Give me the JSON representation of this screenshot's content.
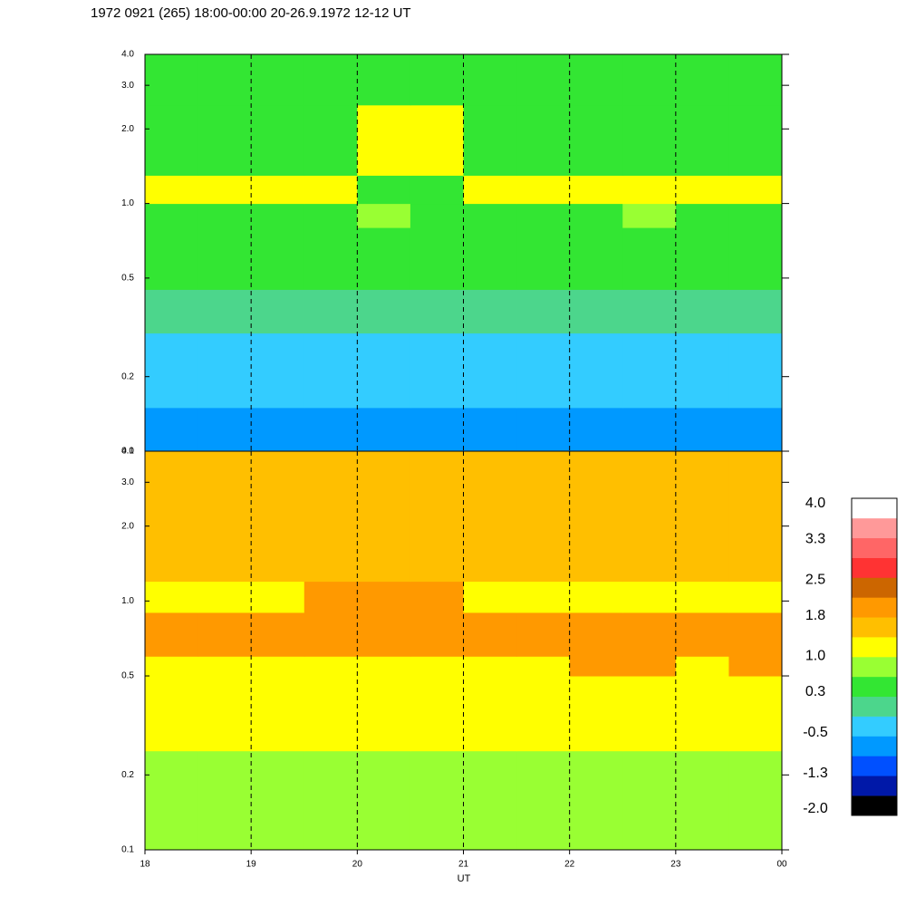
{
  "chart_data": [
    {
      "type": "heatmap",
      "title": "1972 0921 (265) 18:00-00:00 20-26.9.1972  12-12 UT",
      "x_edges": [
        18,
        18.5,
        19,
        19.5,
        20,
        20.5,
        21,
        21.5,
        22,
        22.5,
        23,
        23.5,
        24
      ],
      "y_edges": [
        0.1,
        0.15,
        0.3,
        0.45,
        0.8,
        1.0,
        1.3,
        2.5,
        4.0
      ],
      "z": [
        [
          -0.8,
          -0.8,
          -0.8,
          -0.8,
          -0.8,
          -0.8,
          -0.8,
          -0.8,
          -0.8,
          -0.8,
          -0.8,
          -0.8
        ],
        [
          -0.5,
          -0.5,
          -0.5,
          -0.5,
          -0.5,
          -0.5,
          -0.5,
          -0.5,
          -0.5,
          -0.5,
          -0.5,
          -0.5
        ],
        [
          0,
          0,
          0,
          0,
          0,
          0,
          0,
          0,
          0,
          0,
          0,
          0
        ],
        [
          0.5,
          0.5,
          0.5,
          0.5,
          0.5,
          0.5,
          0.5,
          0.5,
          0.5,
          0.5,
          0.5,
          0.5
        ],
        [
          0.5,
          0.5,
          0.6,
          0.6,
          0.8,
          0.6,
          0.6,
          0.5,
          0.5,
          0.8,
          0.5,
          0.5
        ],
        [
          1.2,
          1.2,
          1.2,
          1.2,
          0.6,
          0.6,
          1.2,
          1.2,
          1.2,
          1.2,
          1.2,
          1.2
        ],
        [
          0.4,
          0.4,
          0.4,
          0.4,
          1.2,
          1.2,
          0.4,
          0.4,
          0.4,
          0.4,
          0.4,
          0.4
        ],
        [
          0.3,
          0.3,
          0.3,
          0.3,
          0.3,
          0.3,
          0.3,
          0.3,
          0.3,
          0.3,
          0.3,
          0.3
        ]
      ],
      "xlim": [
        18,
        24
      ],
      "ylim": [
        0.1,
        4.0
      ],
      "log_y": true,
      "grid": true,
      "xticks": [],
      "yticks": [
        0.1,
        0.2,
        0.5,
        {
          "value": 1,
          "label": "1.0"
        },
        {
          "value": 2,
          "label": "2.0"
        },
        {
          "value": 3,
          "label": "3.0"
        },
        {
          "value": 4,
          "label": "4.0"
        }
      ]
    },
    {
      "type": "heatmap",
      "xlabel": "UT",
      "x_edges": [
        18,
        18.5,
        19,
        19.5,
        20,
        20.5,
        21,
        21.5,
        22,
        22.5,
        23,
        23.5,
        24
      ],
      "y_edges": [
        0.1,
        0.25,
        0.5,
        0.6,
        0.9,
        1.2,
        4.0
      ],
      "z": [
        [
          0.8,
          0.8,
          0.8,
          0.8,
          0.8,
          0.8,
          0.8,
          0.8,
          0.8,
          0.8,
          0.8,
          0.8
        ],
        [
          1.2,
          1.2,
          1.2,
          1.2,
          1.2,
          1.2,
          1.2,
          1.2,
          1.2,
          1.2,
          1.2,
          1.2
        ],
        [
          1.2,
          1.2,
          1.2,
          1.2,
          1.2,
          1.2,
          1.2,
          1.2,
          1.8,
          1.8,
          1.2,
          1.8
        ],
        [
          1.8,
          1.8,
          1.8,
          1.8,
          1.8,
          1.8,
          1.8,
          1.8,
          1.8,
          1.8,
          1.8,
          1.8
        ],
        [
          1.2,
          1.2,
          1.2,
          1.8,
          1.8,
          1.8,
          1.2,
          1.2,
          1.2,
          1.2,
          1.2,
          1.2
        ],
        [
          1.6,
          1.6,
          1.6,
          1.6,
          1.6,
          1.6,
          1.6,
          1.6,
          1.6,
          1.6,
          1.6,
          1.6
        ]
      ],
      "xlim": [
        18,
        24
      ],
      "ylim": [
        0.1,
        4.0
      ],
      "log_y": true,
      "grid": true,
      "xticks": [
        18,
        19,
        20,
        21,
        22,
        23,
        {
          "value": 24,
          "label": "00"
        }
      ],
      "yticks": [
        0.1,
        0.2,
        0.5,
        {
          "value": 1,
          "label": "1.0"
        },
        {
          "value": 2,
          "label": "2.0"
        },
        {
          "value": 3,
          "label": "3.0"
        },
        {
          "value": 4,
          "label": "4.0"
        }
      ],
      "colorbar": {
        "clim": [
          -2.0,
          4.0
        ],
        "colors": [
          "#000000",
          "#0018a8",
          "#0050ff",
          "#0099ff",
          "#33ccff",
          "#4cd68c",
          "#33e633",
          "#99ff33",
          "#ffff00",
          "#ffbf00",
          "#ff9900",
          "#cc6600",
          "#ff3333",
          "#ff6666",
          "#ff9999",
          "#ffffff"
        ],
        "ticks": [
          {
            "value": -2,
            "label": "-2.0"
          },
          -1.3,
          -0.5,
          0.3,
          {
            "value": 1,
            "label": "1.0"
          },
          1.8,
          2.5,
          3.3,
          {
            "value": 4,
            "label": "4.0"
          }
        ]
      }
    }
  ]
}
